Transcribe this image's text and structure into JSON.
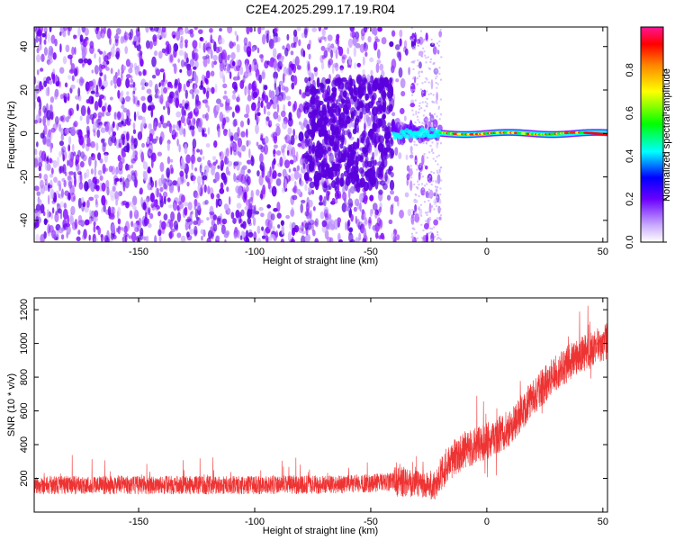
{
  "title": "C2E4.2025.299.17.19.R04",
  "chart_data": [
    {
      "type": "heatmap",
      "xlabel": "Height of straight line (km)",
      "ylabel": "Frequency (Hz)",
      "xlim": [
        -195,
        52
      ],
      "ylim": [
        -50,
        49
      ],
      "xticks": [
        -150,
        -100,
        -50,
        0,
        50
      ],
      "yticks": [
        -40,
        -20,
        0,
        20,
        40
      ],
      "colorbar": {
        "label": "Normalized spectral amplitude",
        "range": [
          0,
          1
        ],
        "ticks": [
          "0.0",
          "0.2",
          "0.4",
          "0.6",
          "0.8"
        ],
        "stops": [
          "#ffffff",
          "#6a00ff",
          "#0000ff",
          "#00ffff",
          "#00ff00",
          "#ffff00",
          "#ff8800",
          "#ff0000",
          "#ff1493"
        ]
      },
      "regions": [
        {
          "x": [
            -195,
            -40
          ],
          "description": "diffuse purple noise across all frequencies",
          "amplitude": 0.1
        },
        {
          "x": [
            -40,
            52
          ],
          "frequency_hz": 0,
          "description": "narrow band near 0 Hz",
          "amplitude_range": [
            0.3,
            1.0
          ]
        }
      ],
      "grid": false
    },
    {
      "type": "line",
      "xlabel": "Height of straight line (km)",
      "ylabel": "SNR (10 * v/v)",
      "xlim": [
        -195,
        52
      ],
      "ylim": [
        0,
        1270
      ],
      "xticks": [
        -150,
        -100,
        -50,
        0,
        50
      ],
      "yticks": [
        200,
        400,
        600,
        800,
        1000,
        1200
      ],
      "series": [
        {
          "color": "#ee3333",
          "trend_x": [
            -195,
            -150,
            -100,
            -60,
            -40,
            -30,
            -22,
            -20,
            -15,
            -10,
            0,
            10,
            20,
            30,
            40,
            50,
            52
          ],
          "trend_y": [
            160,
            160,
            160,
            165,
            180,
            180,
            150,
            230,
            310,
            360,
            420,
            500,
            680,
            830,
            930,
            1000,
            1010
          ]
        }
      ],
      "grid": false
    }
  ]
}
